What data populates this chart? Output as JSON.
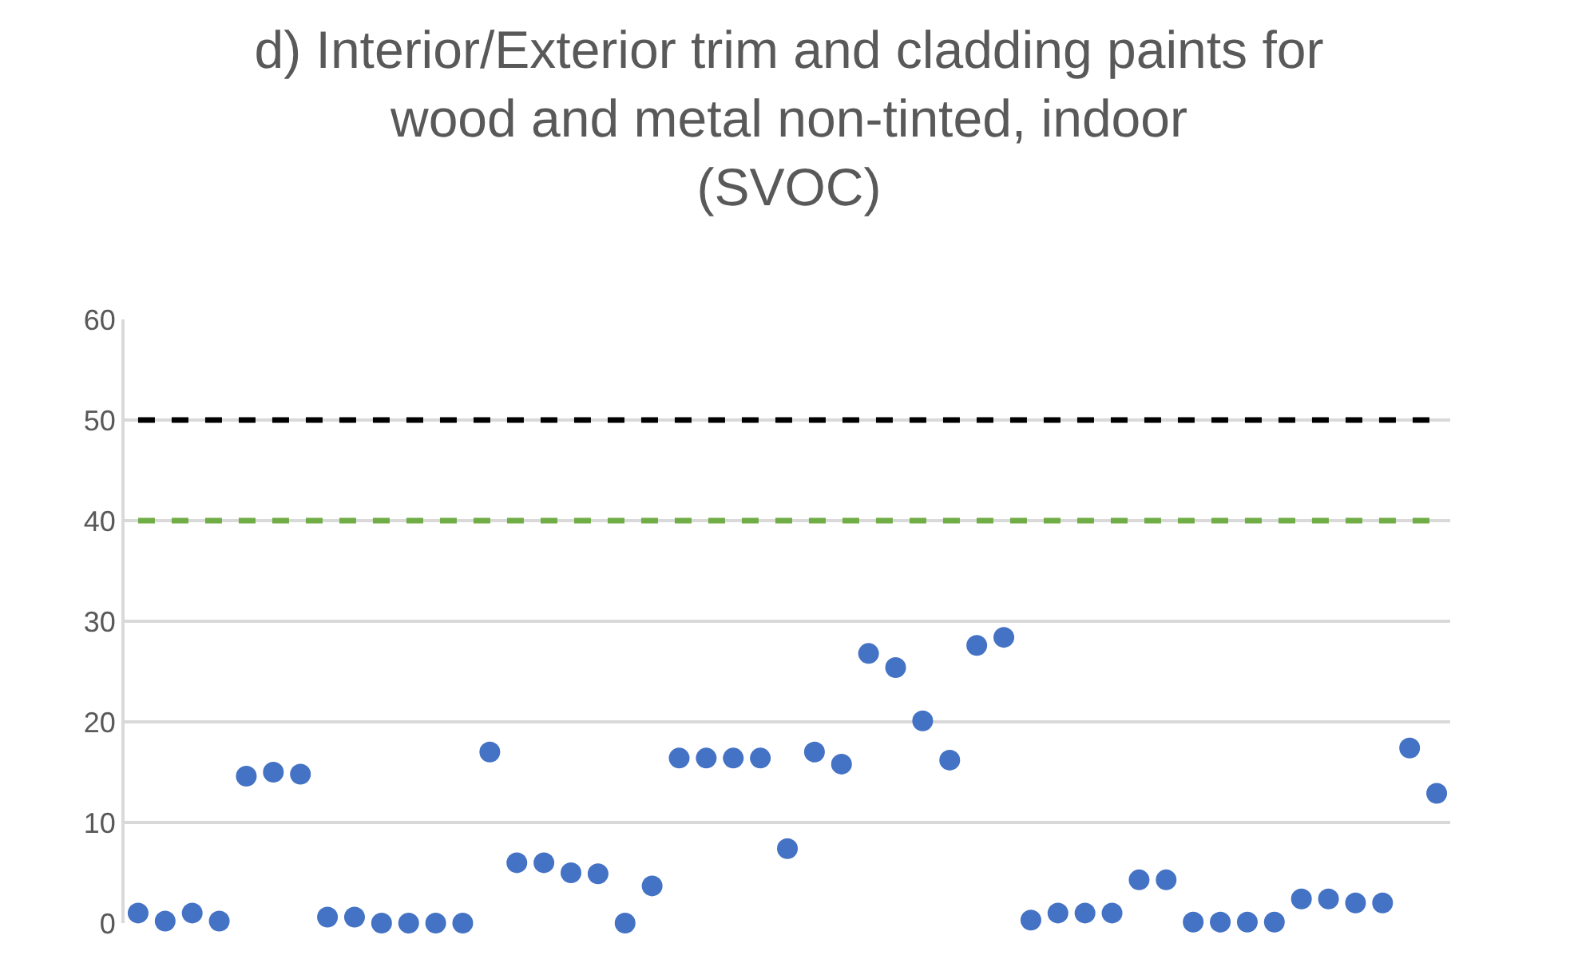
{
  "chart_data": {
    "type": "scatter",
    "title": "d) Interior/Exterior trim and cladding paints for\nwood and metal non-tinted, indoor\n(SVOC)",
    "categories": [
      null,
      null,
      null,
      null,
      null,
      null,
      null,
      null,
      null,
      null,
      null,
      null,
      null,
      null,
      null,
      null,
      null,
      null,
      null,
      null,
      null,
      null,
      null,
      null,
      null,
      null,
      null,
      null,
      null,
      null,
      null,
      null,
      null,
      null,
      null,
      null,
      null,
      null,
      null,
      null,
      null,
      null,
      null,
      null,
      null,
      null,
      null,
      null,
      null
    ],
    "series": [
      {
        "color": "#4472c4",
        "values": [
          1.0,
          0.2,
          1.0,
          0.2,
          14.6,
          15.0,
          14.8,
          0.6,
          0.6,
          0,
          0,
          0,
          0,
          17.0,
          6.0,
          6.0,
          5.0,
          4.9,
          0,
          3.7,
          16.4,
          16.4,
          16.4,
          16.4,
          7.4,
          17.0,
          15.8,
          26.8,
          25.4,
          20.1,
          16.2,
          27.6,
          28.4,
          0.3,
          1.0,
          1.0,
          1.0,
          4.3,
          4.3,
          0.1,
          0.1,
          0.1,
          0.1,
          2.4,
          2.4,
          2.0,
          2.0,
          17.4,
          12.9
        ]
      }
    ],
    "ref_lines": [
      {
        "axis": "y",
        "value": 50,
        "color": "#000000",
        "line_style": "dashed"
      },
      {
        "axis": "y",
        "value": 40,
        "color": "#70ad47",
        "line_style": "dashed"
      }
    ],
    "ylim": [
      0,
      60
    ],
    "yticks": [
      0,
      10,
      20,
      30,
      40,
      50,
      60
    ],
    "grid": "y",
    "marker": "circle",
    "tick_labels": "y"
  }
}
